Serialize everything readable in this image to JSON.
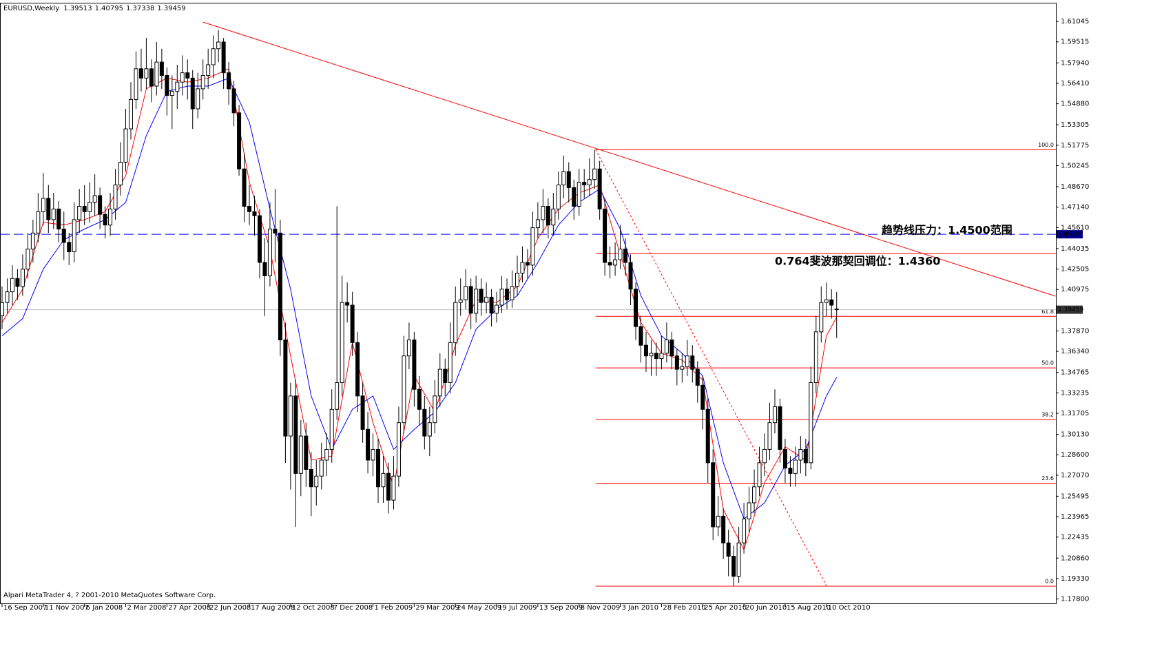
{
  "chart_data": {
    "type": "candlestick",
    "symbol": "EURUSD,Weekly",
    "footer": "Alpari MetaTrader 4, ? 2001-2010 MetaQuotes Software Corp.",
    "xlim": [
      -0.4,
      204.55
    ],
    "ylim": [
      1.1747,
      1.6239
    ],
    "yticks": [
      1.61045,
      1.59515,
      {
        "value": 1.5794,
        "label": "1.57940"
      },
      {
        "value": 1.5641,
        "label": "1.56410"
      },
      {
        "value": 1.5488,
        "label": "1.54880"
      },
      1.53305,
      1.51775,
      1.50245,
      {
        "value": 1.4867,
        "label": "1.48670"
      },
      {
        "value": 1.4714,
        "label": "1.47140"
      },
      {
        "value": 1.4561,
        "label": "1.45610"
      },
      1.44035,
      1.42505,
      1.40975,
      {
        "value": 1.3787,
        "label": "1.37870"
      },
      {
        "value": 1.3634,
        "label": "1.36340"
      },
      1.34765,
      1.33235,
      1.31705,
      {
        "value": 1.3013,
        "label": "1.30130"
      },
      {
        "value": 1.286,
        "label": "1.28600"
      },
      {
        "value": 1.2707,
        "label": "1.27070"
      },
      1.25495,
      1.23965,
      1.22435,
      {
        "value": 1.2086,
        "label": "1.20860"
      },
      {
        "value": 1.1933,
        "label": "1.19330"
      },
      {
        "value": 1.178,
        "label": "1.17800"
      }
    ],
    "xticks": [
      {
        "value": 0,
        "label": "16 Sep 2007"
      },
      {
        "value": 8,
        "label": "11 Nov 2007"
      },
      {
        "value": 16,
        "label": "6 Jan 2008"
      },
      {
        "value": 24,
        "label": "2 Mar 2008"
      },
      {
        "value": 32,
        "label": "27 Apr 2008"
      },
      {
        "value": 40,
        "label": "22 Jun 2008"
      },
      {
        "value": 48,
        "label": "17 Aug 2008"
      },
      {
        "value": 56,
        "label": "12 Oct 2008"
      },
      {
        "value": 64,
        "label": "7 Dec 2008"
      },
      {
        "value": 72,
        "label": "1 Feb 2009"
      },
      {
        "value": 80,
        "label": "29 Mar 2009"
      },
      {
        "value": 88,
        "label": "24 May 2009"
      },
      {
        "value": 96,
        "label": "19 Jul 2009"
      },
      {
        "value": 104,
        "label": "13 Sep 2009"
      },
      {
        "value": 112,
        "label": "8 Nov 2009"
      },
      {
        "value": 120,
        "label": "3 Jan 2010"
      },
      {
        "value": 128,
        "label": "28 Feb 2010"
      },
      {
        "value": 136,
        "label": "25 Apr 2010"
      },
      {
        "value": 144,
        "label": "20 Jun 2010"
      },
      {
        "value": 152,
        "label": "15 Aug 2010"
      },
      {
        "value": 160,
        "label": "10 Oct 2010"
      }
    ],
    "ohlc": [
      [
        1.39,
        1.412,
        1.38,
        1.4
      ],
      [
        1.4,
        1.418,
        1.392,
        1.408
      ],
      [
        1.408,
        1.428,
        1.398,
        1.418
      ],
      [
        1.418,
        1.425,
        1.402,
        1.412
      ],
      [
        1.412,
        1.436,
        1.405,
        1.425
      ],
      [
        1.425,
        1.452,
        1.418,
        1.44
      ],
      [
        1.44,
        1.462,
        1.43,
        1.452
      ],
      [
        1.452,
        1.482,
        1.445,
        1.468
      ],
      [
        1.468,
        1.497,
        1.458,
        1.478
      ],
      [
        1.478,
        1.488,
        1.452,
        1.462
      ],
      [
        1.462,
        1.482,
        1.455,
        1.47
      ],
      [
        1.47,
        1.476,
        1.445,
        1.455
      ],
      [
        1.455,
        1.468,
        1.432,
        1.445
      ],
      [
        1.445,
        1.452,
        1.428,
        1.438
      ],
      [
        1.438,
        1.475,
        1.43,
        1.462
      ],
      [
        1.462,
        1.485,
        1.452,
        1.472
      ],
      [
        1.472,
        1.488,
        1.458,
        1.468
      ],
      [
        1.468,
        1.49,
        1.46,
        1.475
      ],
      [
        1.475,
        1.496,
        1.465,
        1.48
      ],
      [
        1.48,
        1.486,
        1.455,
        1.466
      ],
      [
        1.466,
        1.472,
        1.448,
        1.458
      ],
      [
        1.458,
        1.482,
        1.45,
        1.47
      ],
      [
        1.47,
        1.5,
        1.462,
        1.488
      ],
      [
        1.488,
        1.52,
        1.48,
        1.505
      ],
      [
        1.505,
        1.545,
        1.498,
        1.53
      ],
      [
        1.53,
        1.565,
        1.522,
        1.552
      ],
      [
        1.552,
        1.588,
        1.545,
        1.575
      ],
      [
        1.575,
        1.59,
        1.558,
        1.568
      ],
      [
        1.568,
        1.598,
        1.56,
        1.575
      ],
      [
        1.575,
        1.582,
        1.55,
        1.562
      ],
      [
        1.562,
        1.595,
        1.555,
        1.58
      ],
      [
        1.58,
        1.59,
        1.56,
        1.57
      ],
      [
        1.57,
        1.576,
        1.54,
        1.555
      ],
      [
        1.555,
        1.57,
        1.53,
        1.558
      ],
      [
        1.558,
        1.578,
        1.545,
        1.565
      ],
      [
        1.565,
        1.585,
        1.555,
        1.572
      ],
      [
        1.572,
        1.582,
        1.552,
        1.568
      ],
      [
        1.568,
        1.574,
        1.53,
        1.545
      ],
      [
        1.545,
        1.572,
        1.538,
        1.56
      ],
      [
        1.56,
        1.582,
        1.552,
        1.57
      ],
      [
        1.57,
        1.59,
        1.56,
        1.578
      ],
      [
        1.578,
        1.6,
        1.568,
        1.59
      ],
      [
        1.59,
        1.604,
        1.58,
        1.595
      ],
      [
        1.595,
        1.598,
        1.56,
        1.572
      ],
      [
        1.572,
        1.58,
        1.548,
        1.56
      ],
      [
        1.56,
        1.566,
        1.532,
        1.542
      ],
      [
        1.542,
        1.548,
        1.495,
        1.5
      ],
      [
        1.5,
        1.512,
        1.46,
        1.472
      ],
      [
        1.472,
        1.488,
        1.458,
        1.468
      ],
      [
        1.468,
        1.48,
        1.45,
        1.465
      ],
      [
        1.465,
        1.47,
        1.418,
        1.43
      ],
      [
        1.43,
        1.448,
        1.39,
        1.42
      ],
      [
        1.42,
        1.475,
        1.412,
        1.455
      ],
      [
        1.455,
        1.485,
        1.43,
        1.452
      ],
      [
        1.452,
        1.462,
        1.36,
        1.372
      ],
      [
        1.372,
        1.385,
        1.28,
        1.3
      ],
      [
        1.3,
        1.34,
        1.26,
        1.33
      ],
      [
        1.33,
        1.342,
        1.232,
        1.272
      ],
      [
        1.272,
        1.312,
        1.255,
        1.3
      ],
      [
        1.3,
        1.31,
        1.262,
        1.275
      ],
      [
        1.275,
        1.288,
        1.24,
        1.262
      ],
      [
        1.262,
        1.282,
        1.248,
        1.27
      ],
      [
        1.27,
        1.295,
        1.26,
        1.282
      ],
      [
        1.282,
        1.302,
        1.27,
        1.29
      ],
      [
        1.29,
        1.335,
        1.28,
        1.32
      ],
      [
        1.32,
        1.472,
        1.312,
        1.34
      ],
      [
        1.34,
        1.42,
        1.33,
        1.4
      ],
      [
        1.4,
        1.415,
        1.385,
        1.398
      ],
      [
        1.398,
        1.408,
        1.36,
        1.37
      ],
      [
        1.37,
        1.378,
        1.318,
        1.33
      ],
      [
        1.33,
        1.34,
        1.295,
        1.305
      ],
      [
        1.305,
        1.318,
        1.272,
        1.282
      ],
      [
        1.282,
        1.302,
        1.27,
        1.29
      ],
      [
        1.29,
        1.298,
        1.25,
        1.262
      ],
      [
        1.262,
        1.285,
        1.25,
        1.272
      ],
      [
        1.272,
        1.28,
        1.242,
        1.252
      ],
      [
        1.252,
        1.285,
        1.245,
        1.27
      ],
      [
        1.27,
        1.322,
        1.262,
        1.31
      ],
      [
        1.31,
        1.375,
        1.302,
        1.36
      ],
      [
        1.36,
        1.385,
        1.35,
        1.372
      ],
      [
        1.372,
        1.378,
        1.322,
        1.335
      ],
      [
        1.335,
        1.345,
        1.308,
        1.32
      ],
      [
        1.32,
        1.33,
        1.29,
        1.3
      ],
      [
        1.3,
        1.322,
        1.285,
        1.31
      ],
      [
        1.31,
        1.342,
        1.302,
        1.33
      ],
      [
        1.33,
        1.362,
        1.322,
        1.35
      ],
      [
        1.35,
        1.358,
        1.33,
        1.34
      ],
      [
        1.34,
        1.385,
        1.332,
        1.37
      ],
      [
        1.37,
        1.412,
        1.36,
        1.4
      ],
      [
        1.4,
        1.418,
        1.39,
        1.402
      ],
      [
        1.402,
        1.425,
        1.395,
        1.412
      ],
      [
        1.412,
        1.418,
        1.38,
        1.392
      ],
      [
        1.392,
        1.42,
        1.385,
        1.41
      ],
      [
        1.41,
        1.418,
        1.39,
        1.4
      ],
      [
        1.4,
        1.415,
        1.392,
        1.404
      ],
      [
        1.404,
        1.41,
        1.382,
        1.392
      ],
      [
        1.392,
        1.408,
        1.385,
        1.398
      ],
      [
        1.398,
        1.42,
        1.392,
        1.41
      ],
      [
        1.41,
        1.418,
        1.395,
        1.402
      ],
      [
        1.402,
        1.424,
        1.396,
        1.412
      ],
      [
        1.412,
        1.435,
        1.405,
        1.422
      ],
      [
        1.422,
        1.442,
        1.415,
        1.43
      ],
      [
        1.43,
        1.44,
        1.418,
        1.428
      ],
      [
        1.428,
        1.468,
        1.42,
        1.456
      ],
      [
        1.456,
        1.475,
        1.448,
        1.462
      ],
      [
        1.462,
        1.485,
        1.452,
        1.472
      ],
      [
        1.472,
        1.478,
        1.448,
        1.458
      ],
      [
        1.458,
        1.482,
        1.45,
        1.47
      ],
      [
        1.47,
        1.498,
        1.462,
        1.488
      ],
      [
        1.488,
        1.51,
        1.478,
        1.498
      ],
      [
        1.498,
        1.505,
        1.475,
        1.486
      ],
      [
        1.486,
        1.492,
        1.462,
        1.472
      ],
      [
        1.472,
        1.5,
        1.465,
        1.49
      ],
      [
        1.49,
        1.5,
        1.478,
        1.488
      ],
      [
        1.488,
        1.508,
        1.48,
        1.492
      ],
      [
        1.492,
        1.5144,
        1.485,
        1.5
      ],
      [
        1.5,
        1.506,
        1.462,
        1.47
      ],
      [
        1.47,
        1.478,
        1.42,
        1.43
      ],
      [
        1.43,
        1.442,
        1.418,
        1.428
      ],
      [
        1.428,
        1.445,
        1.42,
        1.432
      ],
      [
        1.432,
        1.458,
        1.425,
        1.44
      ],
      [
        1.44,
        1.448,
        1.42,
        1.43
      ],
      [
        1.43,
        1.436,
        1.398,
        1.41
      ],
      [
        1.41,
        1.415,
        1.372,
        1.382
      ],
      [
        1.382,
        1.39,
        1.355,
        1.368
      ],
      [
        1.368,
        1.378,
        1.348,
        1.36
      ],
      [
        1.36,
        1.372,
        1.345,
        1.362
      ],
      [
        1.362,
        1.37,
        1.345,
        1.358
      ],
      [
        1.358,
        1.375,
        1.35,
        1.362
      ],
      [
        1.362,
        1.385,
        1.355,
        1.372
      ],
      [
        1.372,
        1.378,
        1.35,
        1.36
      ],
      [
        1.36,
        1.365,
        1.338,
        1.35
      ],
      [
        1.35,
        1.362,
        1.34,
        1.352
      ],
      [
        1.352,
        1.372,
        1.345,
        1.36
      ],
      [
        1.36,
        1.368,
        1.34,
        1.35
      ],
      [
        1.35,
        1.356,
        1.325,
        1.338
      ],
      [
        1.338,
        1.345,
        1.305,
        1.32
      ],
      [
        1.32,
        1.328,
        1.265,
        1.28
      ],
      [
        1.28,
        1.29,
        1.222,
        1.232
      ],
      [
        1.232,
        1.255,
        1.225,
        1.24
      ],
      [
        1.24,
        1.246,
        1.208,
        1.22
      ],
      [
        1.22,
        1.23,
        1.195,
        1.21
      ],
      [
        1.21,
        1.218,
        1.1876,
        1.195
      ],
      [
        1.195,
        1.232,
        1.19,
        1.22
      ],
      [
        1.22,
        1.25,
        1.212,
        1.238
      ],
      [
        1.238,
        1.262,
        1.228,
        1.25
      ],
      [
        1.25,
        1.275,
        1.242,
        1.262
      ],
      [
        1.262,
        1.292,
        1.255,
        1.28
      ],
      [
        1.28,
        1.302,
        1.27,
        1.29
      ],
      [
        1.29,
        1.325,
        1.282,
        1.31
      ],
      [
        1.31,
        1.335,
        1.302,
        1.322
      ],
      [
        1.322,
        1.328,
        1.28,
        1.29
      ],
      [
        1.29,
        1.298,
        1.265,
        1.276
      ],
      [
        1.276,
        1.285,
        1.262,
        1.272
      ],
      [
        1.272,
        1.292,
        1.262,
        1.282
      ],
      [
        1.282,
        1.3,
        1.272,
        1.29
      ],
      [
        1.29,
        1.298,
        1.27,
        1.28
      ],
      [
        1.28,
        1.352,
        1.275,
        1.34
      ],
      [
        1.34,
        1.39,
        1.332,
        1.378
      ],
      [
        1.378,
        1.412,
        1.37,
        1.4
      ],
      [
        1.4,
        1.415,
        1.39,
        1.402
      ],
      [
        1.402,
        1.41,
        1.388,
        1.398
      ],
      [
        1.39513,
        1.40795,
        1.37338,
        1.39459
      ]
    ],
    "ma": [
      {
        "color": "#ff0000",
        "x": [
          0,
          4,
          8,
          12,
          16,
          20,
          24,
          28,
          32,
          36,
          40,
          44,
          48,
          52,
          56,
          60,
          64,
          68,
          72,
          76,
          80,
          84,
          88,
          92,
          96,
          100,
          104,
          108,
          112,
          116,
          120,
          124,
          128,
          132,
          136,
          140,
          144,
          148,
          152,
          156,
          160,
          162
        ],
        "values": [
          1.385,
          1.41,
          1.46,
          1.458,
          1.462,
          1.468,
          1.495,
          1.56,
          1.568,
          1.565,
          1.568,
          1.575,
          1.49,
          1.44,
          1.36,
          1.282,
          1.285,
          1.37,
          1.31,
          1.262,
          1.345,
          1.318,
          1.368,
          1.402,
          1.4,
          1.412,
          1.448,
          1.47,
          1.482,
          1.488,
          1.436,
          1.385,
          1.362,
          1.357,
          1.342,
          1.245,
          1.215,
          1.265,
          1.292,
          1.282,
          1.375,
          1.389
        ]
      },
      {
        "color": "#0000ff",
        "x": [
          0,
          4,
          8,
          12,
          16,
          20,
          24,
          28,
          32,
          36,
          40,
          44,
          48,
          52,
          56,
          60,
          64,
          68,
          72,
          76,
          80,
          84,
          88,
          92,
          96,
          100,
          104,
          108,
          112,
          116,
          120,
          124,
          128,
          132,
          136,
          140,
          144,
          148,
          152,
          156,
          160,
          162
        ],
        "values": [
          1.375,
          1.388,
          1.425,
          1.447,
          1.455,
          1.462,
          1.475,
          1.525,
          1.558,
          1.562,
          1.562,
          1.568,
          1.535,
          1.47,
          1.41,
          1.33,
          1.29,
          1.32,
          1.33,
          1.29,
          1.305,
          1.318,
          1.34,
          1.38,
          1.395,
          1.405,
          1.43,
          1.458,
          1.475,
          1.485,
          1.455,
          1.405,
          1.375,
          1.362,
          1.345,
          1.28,
          1.238,
          1.25,
          1.278,
          1.29,
          1.33,
          1.344
        ]
      }
    ],
    "trendline": {
      "color": "#ff0000",
      "x": [
        39,
        204.5
      ],
      "y": [
        1.6099,
        1.4047
      ]
    },
    "fib_diagonal": {
      "color": "#ff0000",
      "x": [
        115.2,
        160
      ],
      "y": [
        1.5144,
        1.188
      ]
    },
    "fib": {
      "color": "#ff0000",
      "start": 115.2,
      "levels": [
        {
          "value": 1.5144,
          "label": "100.0"
        },
        {
          "value": 1.4366
        },
        {
          "value": 1.3896,
          "label": "61.8"
        },
        {
          "value": 1.351,
          "label": "50.0"
        },
        {
          "value": 1.3124,
          "label": "38.2"
        },
        {
          "value": 1.2647,
          "label": "23.6"
        },
        {
          "value": 1.1876,
          "label": "0.0"
        }
      ]
    },
    "hline": {
      "color": "#0000ff",
      "value": 1.45107
    },
    "annotations": [
      {
        "text": "趋势线压力：1.4500范围",
        "color": "#0000ff"
      },
      {
        "text": "0.764斐波那契回调位：1.4360",
        "color": "#ff0000"
      }
    ]
  }
}
